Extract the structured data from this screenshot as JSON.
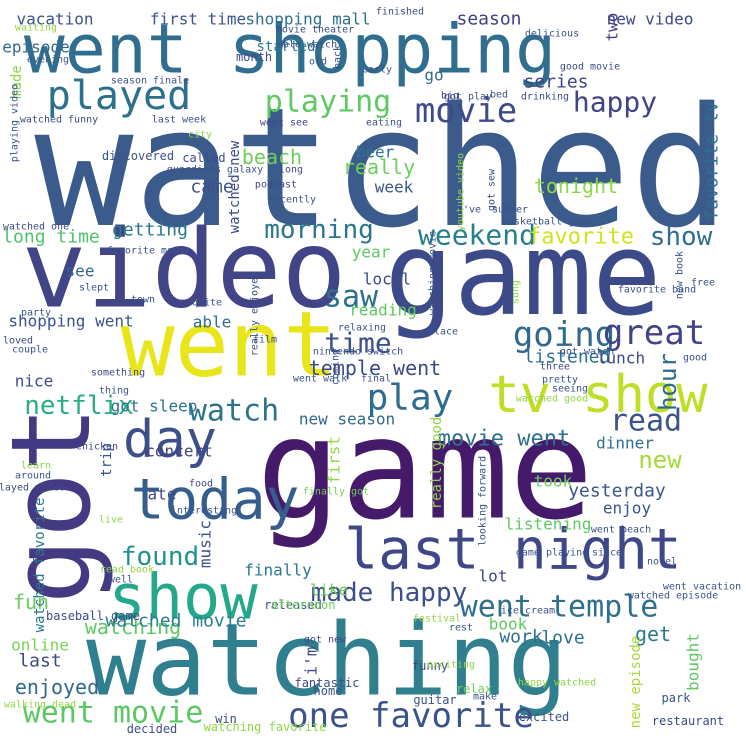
{
  "words": [
    {
      "text": "watched",
      "color": "#3b5b8c"
    },
    {
      "text": "game",
      "color": "#3d4a89"
    },
    {
      "text": "game",
      "color": "#451a6a"
    },
    {
      "text": "video",
      "color": "#414487"
    },
    {
      "text": "went shopping",
      "color": "#2f6e8e"
    },
    {
      "text": "watching",
      "color": "#2f7f8e"
    },
    {
      "text": "went",
      "color": "#e9e51b"
    },
    {
      "text": "got",
      "color": "#443983"
    },
    {
      "text": "last night",
      "color": "#3f4788"
    },
    {
      "text": "tv show",
      "color": "#bddf26"
    },
    {
      "text": "show",
      "color": "#25a88a"
    },
    {
      "text": "today",
      "color": "#355e8d"
    },
    {
      "text": "played",
      "color": "#2d708e"
    },
    {
      "text": "day",
      "color": "#3c4f8a"
    },
    {
      "text": "went temple",
      "color": "#2e6f8e"
    },
    {
      "text": "one favorite",
      "color": "#3b528b"
    },
    {
      "text": "went movie",
      "color": "#5cc863"
    },
    {
      "text": "playing",
      "color": "#5ec962"
    },
    {
      "text": "movie",
      "color": "#3e4a89"
    },
    {
      "text": "happy",
      "color": "#404387"
    },
    {
      "text": "going",
      "color": "#31688e"
    },
    {
      "text": "great",
      "color": "#414487"
    },
    {
      "text": "play",
      "color": "#2f6b8e"
    },
    {
      "text": "saw",
      "color": "#2d708e"
    },
    {
      "text": "time",
      "color": "#3b518b"
    },
    {
      "text": "watch",
      "color": "#2c738e"
    },
    {
      "text": "weekend",
      "color": "#277f8e"
    },
    {
      "text": "morning",
      "color": "#2b758e"
    },
    {
      "text": "made happy",
      "color": "#3c4f8a"
    },
    {
      "text": "found",
      "color": "#21918c"
    },
    {
      "text": "favorite",
      "color": "#d2e21b"
    },
    {
      "text": "show",
      "color": "#2e6e8e"
    },
    {
      "text": "read",
      "color": "#3a538b"
    },
    {
      "text": "new",
      "color": "#a2da37"
    },
    {
      "text": "netflix",
      "color": "#28ae80"
    },
    {
      "text": "movie went",
      "color": "#2e6f8e"
    },
    {
      "text": "temple went",
      "color": "#3e4989"
    },
    {
      "text": "hour",
      "color": "#31688e"
    },
    {
      "text": "get",
      "color": "#2a7b8e"
    },
    {
      "text": "watching",
      "color": "#5ec962"
    },
    {
      "text": "yesterday",
      "color": "#3a548c"
    },
    {
      "text": "work",
      "color": "#2d708e"
    },
    {
      "text": "love",
      "color": "#2c728e"
    },
    {
      "text": "fun",
      "color": "#67cc5c"
    },
    {
      "text": "watched movie",
      "color": "#277f8e"
    },
    {
      "text": "enjoyed",
      "color": "#31678e"
    },
    {
      "text": "last",
      "color": "#3e4989"
    },
    {
      "text": "online",
      "color": "#7ad151"
    },
    {
      "text": "vacation",
      "color": "#3b528b"
    },
    {
      "text": "first time",
      "color": "#3a548c"
    },
    {
      "text": "shopping mall",
      "color": "#2d708e"
    },
    {
      "text": "season",
      "color": "#433e85"
    },
    {
      "text": "new video",
      "color": "#404688"
    },
    {
      "text": "episode",
      "color": "#31688e"
    },
    {
      "text": "started",
      "color": "#2a778e"
    },
    {
      "text": "series",
      "color": "#404387"
    },
    {
      "text": "go",
      "color": "#2f6c8e"
    },
    {
      "text": "two",
      "color": "#443a83"
    },
    {
      "text": "really",
      "color": "#6ccd5a"
    },
    {
      "text": "beer",
      "color": "#2c738e"
    },
    {
      "text": "beach",
      "color": "#6ece58"
    },
    {
      "text": "came",
      "color": "#3b528b"
    },
    {
      "text": "week",
      "color": "#3a548c"
    },
    {
      "text": "tonight",
      "color": "#8fd744"
    },
    {
      "text": "favorite tv",
      "color": "#2c728e"
    },
    {
      "text": "long time",
      "color": "#4ec36b"
    },
    {
      "text": "getting",
      "color": "#2a788e"
    },
    {
      "text": "see",
      "color": "#31688e"
    },
    {
      "text": "local",
      "color": "#3e4989"
    },
    {
      "text": "year",
      "color": "#5dc863"
    },
    {
      "text": "shopping went",
      "color": "#3b518b"
    },
    {
      "text": "able",
      "color": "#2e6d8e"
    },
    {
      "text": "reading",
      "color": "#5ec962"
    },
    {
      "text": "listened",
      "color": "#2d718e"
    },
    {
      "text": "lunch",
      "color": "#3e4a89"
    },
    {
      "text": "nice",
      "color": "#3f4889"
    },
    {
      "text": "got sleep",
      "color": "#2c728e"
    },
    {
      "text": "new season",
      "color": "#31688e"
    },
    {
      "text": "dinner",
      "color": "#2d708e"
    },
    {
      "text": "concert",
      "color": "#414487"
    },
    {
      "text": "ate",
      "color": "#3e4a89"
    },
    {
      "text": "took",
      "color": "#6ccd5a"
    },
    {
      "text": "listening",
      "color": "#5ec962"
    },
    {
      "text": "enjoy",
      "color": "#3b528b"
    },
    {
      "text": "finally",
      "color": "#2a788e"
    },
    {
      "text": "music",
      "color": "#3d4e8a"
    },
    {
      "text": "lot",
      "color": "#404387"
    },
    {
      "text": "like",
      "color": "#6ece58"
    },
    {
      "text": "book",
      "color": "#5ec962"
    },
    {
      "text": "bought",
      "color": "#5ec962"
    },
    {
      "text": "i'm",
      "color": "#3f4889"
    },
    {
      "text": "first",
      "color": "#8fd744"
    },
    {
      "text": "really good",
      "color": "#8fd744"
    },
    {
      "text": "new episode",
      "color": "#a5db36"
    },
    {
      "text": "watched new",
      "color": "#3e4989"
    },
    {
      "text": "watched favorite",
      "color": "#2a788e"
    },
    {
      "text": "trip",
      "color": "#39568c"
    },
    {
      "text": "made",
      "color": "#8fd744"
    },
    {
      "text": "month",
      "color": "#3e4989"
    },
    {
      "text": "discovered",
      "color": "#3b528b"
    },
    {
      "text": "called",
      "color": "#3e4989"
    },
    {
      "text": "baseball game",
      "color": "#3e4989"
    },
    {
      "text": "funny",
      "color": "#3e4989"
    },
    {
      "text": "relax",
      "color": "#6ece58"
    },
    {
      "text": "home",
      "color": "#3b528b"
    },
    {
      "text": "released",
      "color": "#3e4989"
    },
    {
      "text": "afternoon",
      "color": "#6ece58"
    },
    {
      "text": "guitar",
      "color": "#3b528b"
    },
    {
      "text": "fantastic",
      "color": "#3e4989"
    },
    {
      "text": "win",
      "color": "#3e4989"
    },
    {
      "text": "decided",
      "color": "#3b528b"
    },
    {
      "text": "watching favorite",
      "color": "#8fd744"
    },
    {
      "text": "excited",
      "color": "#3b528b"
    },
    {
      "text": "restaurant",
      "color": "#3e4989"
    },
    {
      "text": "park",
      "color": "#3b528b"
    },
    {
      "text": "walking dead",
      "color": "#8fd744"
    },
    {
      "text": "played video",
      "color": "#3e4989"
    },
    {
      "text": "watched funny",
      "color": "#3e4989"
    },
    {
      "text": "last week",
      "color": "#3b528b"
    },
    {
      "text": "season finale",
      "color": "#3b528b"
    },
    {
      "text": "interesting",
      "color": "#3b528b"
    },
    {
      "text": "food",
      "color": "#3e4989"
    },
    {
      "text": "finally got",
      "color": "#6ece58"
    },
    {
      "text": "looking forward",
      "color": "#3b528b"
    },
    {
      "text": "got new",
      "color": "#3e4989"
    },
    {
      "text": "really enjoyed",
      "color": "#3b528b"
    },
    {
      "text": "film",
      "color": "#3e4989"
    },
    {
      "text": "quite",
      "color": "#3b528b"
    },
    {
      "text": "town",
      "color": "#3b528b"
    },
    {
      "text": "slept",
      "color": "#3b528b"
    },
    {
      "text": "favorite movie",
      "color": "#3b528b"
    },
    {
      "text": "watched one",
      "color": "#3e4989"
    },
    {
      "text": "recently",
      "color": "#3b528b"
    },
    {
      "text": "long",
      "color": "#3e4989"
    },
    {
      "text": "podcast",
      "color": "#3e4989"
    },
    {
      "text": "guardians galaxy",
      "color": "#3b528b"
    },
    {
      "text": "playing video",
      "color": "#3b528b"
    },
    {
      "text": "waiting",
      "color": "#8fd744"
    },
    {
      "text": "evening",
      "color": "#3b528b"
    },
    {
      "text": "movie theater",
      "color": "#3e4989"
    },
    {
      "text": "able watch",
      "color": "#3b528b"
    },
    {
      "text": "went see",
      "color": "#3e4989"
    },
    {
      "text": "eating",
      "color": "#3b528b"
    },
    {
      "text": "finished",
      "color": "#3e4989"
    },
    {
      "text": "delicious",
      "color": "#3b528b"
    },
    {
      "text": "early",
      "color": "#3b528b"
    },
    {
      "text": "big",
      "color": "#3e4989"
    },
    {
      "text": "bed",
      "color": "#3b528b"
    },
    {
      "text": "drinking",
      "color": "#3e4989"
    },
    {
      "text": "good movie",
      "color": "#3b528b"
    },
    {
      "text": "got play",
      "color": "#3e4989"
    },
    {
      "text": "old",
      "color": "#3b528b"
    },
    {
      "text": "back",
      "color": "#3b528b"
    },
    {
      "text": "city",
      "color": "#8fd744"
    },
    {
      "text": "youtube video",
      "color": "#8fd744"
    },
    {
      "text": "got sew",
      "color": "#3e4989"
    },
    {
      "text": "i've",
      "color": "#3e4989"
    },
    {
      "text": "summer",
      "color": "#3b528b"
    },
    {
      "text": "basketball game",
      "color": "#3b528b"
    },
    {
      "text": "new book",
      "color": "#3b528b"
    },
    {
      "text": "watching movie",
      "color": "#3b528b"
    },
    {
      "text": "song",
      "color": "#8fd744"
    },
    {
      "text": "favorite band",
      "color": "#3b528b"
    },
    {
      "text": "free",
      "color": "#3b528b"
    },
    {
      "text": "relaxing",
      "color": "#3b528b"
    },
    {
      "text": "place",
      "color": "#3b528b"
    },
    {
      "text": "loved",
      "color": "#3e4989"
    },
    {
      "text": "couple",
      "color": "#3b528b"
    },
    {
      "text": "nintendo switch",
      "color": "#3b528b"
    },
    {
      "text": "got watch",
      "color": "#3b528b"
    },
    {
      "text": "good",
      "color": "#3b528b"
    },
    {
      "text": "party",
      "color": "#3b528b"
    },
    {
      "text": "something",
      "color": "#3e4989"
    },
    {
      "text": "went walk",
      "color": "#3b528b"
    },
    {
      "text": "final",
      "color": "#3b528b"
    },
    {
      "text": "coming",
      "color": "#3b528b"
    },
    {
      "text": "three",
      "color": "#3e4989"
    },
    {
      "text": "pretty",
      "color": "#3b528b"
    },
    {
      "text": "seeing",
      "color": "#3b528b"
    },
    {
      "text": "watched good",
      "color": "#8fd744"
    },
    {
      "text": "thing",
      "color": "#3b528b"
    },
    {
      "text": "chicken",
      "color": "#3e4989"
    },
    {
      "text": "live",
      "color": "#8fd744"
    },
    {
      "text": "well",
      "color": "#3b528b"
    },
    {
      "text": "read book",
      "color": "#8fd744"
    },
    {
      "text": "learn",
      "color": "#8fd744"
    },
    {
      "text": "around",
      "color": "#3b528b"
    },
    {
      "text": "went beach",
      "color": "#3b528b"
    },
    {
      "text": "since",
      "color": "#3b528b"
    },
    {
      "text": "game playing",
      "color": "#3b528b"
    },
    {
      "text": "novel",
      "color": "#3b528b"
    },
    {
      "text": "went vacation",
      "color": "#3b528b"
    },
    {
      "text": "watched episode",
      "color": "#3b528b"
    },
    {
      "text": "ice cream",
      "color": "#3b528b"
    },
    {
      "text": "festival",
      "color": "#8fd744"
    },
    {
      "text": "rest",
      "color": "#3b528b"
    },
    {
      "text": "exciting",
      "color": "#8fd744"
    },
    {
      "text": "happy watched",
      "color": "#8fd744"
    },
    {
      "text": "make",
      "color": "#3b528b"
    }
  ]
}
